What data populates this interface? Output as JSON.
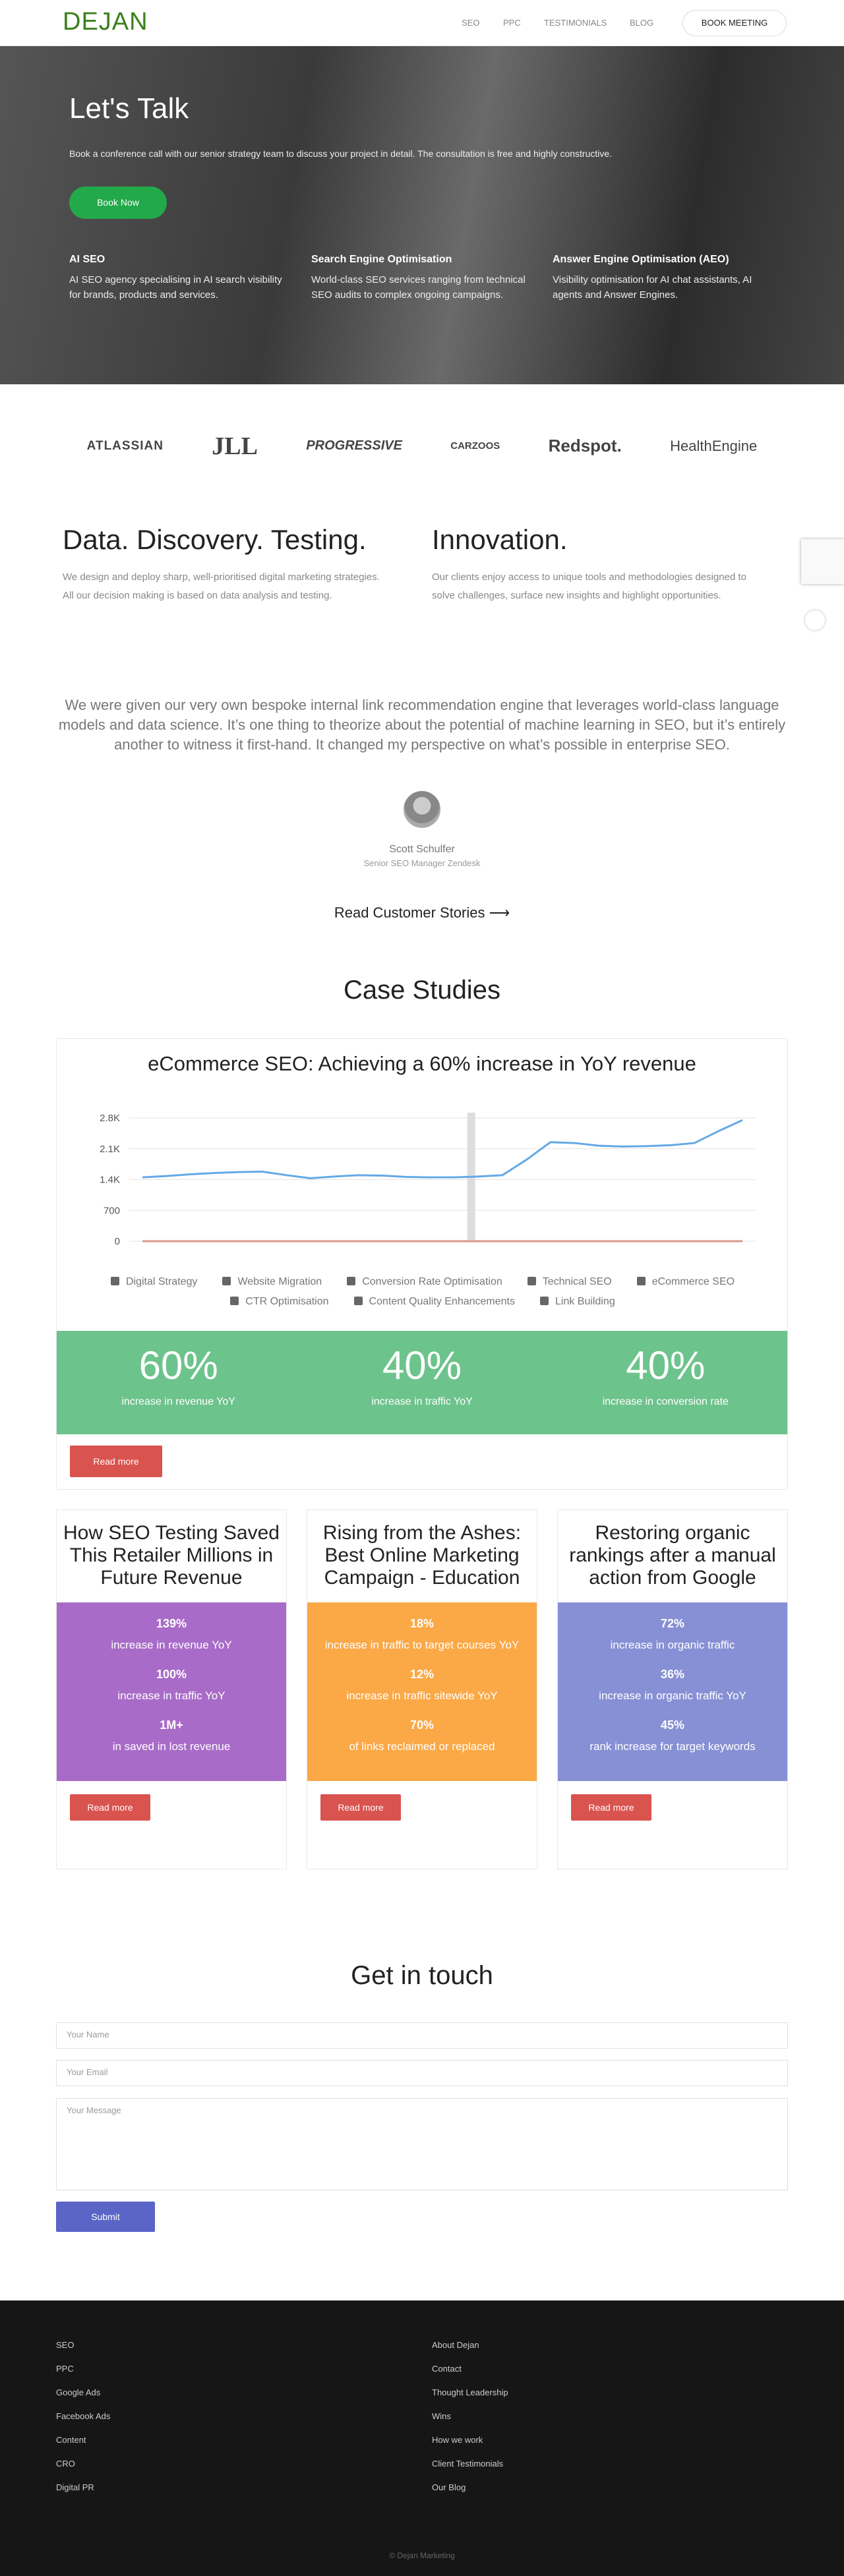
{
  "header": {
    "logo": "DEJAN",
    "nav": [
      "SEO",
      "PPC",
      "TESTIMONIALS",
      "BLOG"
    ],
    "button": "BOOK MEETING"
  },
  "hero": {
    "title": "Let's Talk",
    "subtitle": "Book a conference call with our senior strategy team to discuss your project in detail. The consultation is free and highly constructive.",
    "button": "Book Now",
    "columns": [
      {
        "title": "AI SEO",
        "text": "AI SEO agency specialising in AI search visibility for brands, products and services."
      },
      {
        "title": "Search Engine Optimisation",
        "text": "World-class SEO services ranging from technical SEO audits to complex ongoing campaigns."
      },
      {
        "title": "Answer Engine Optimisation (AEO)",
        "text": "Visibility optimisation for AI chat assistants, AI agents and Answer Engines."
      }
    ]
  },
  "logos": [
    "ATLASSIAN",
    "JLL",
    "PROGRESSIVE",
    "CARZOOS",
    "Redspot.",
    "HealthEngine"
  ],
  "features": [
    {
      "title": "Data. Discovery. Testing.",
      "text": "We design and deploy sharp, well-prioritised digital marketing strategies. All our decision making is based on data analysis and testing."
    },
    {
      "title": "Innovation.",
      "text": "Our clients enjoy access to unique tools and methodologies designed to solve challenges, surface new insights and highlight opportunities."
    }
  ],
  "testimonial": {
    "quote": "We were given our very own bespoke internal link recommendation engine that leverages world-class language models and data science. It’s one thing to theorize about the potential of machine learning in SEO, but it’s entirely another to witness it first-hand. It changed my perspective on what’s possible in enterprise SEO.",
    "name": "Scott Schulfer",
    "role": "Senior SEO Manager Zendesk",
    "link": "Read Customer Stories ⟶"
  },
  "case_studies": {
    "title": "Case Studies",
    "featured": {
      "title": "eCommerce SEO: Achieving a 60% increase in YoY revenue",
      "tags": [
        "Digital Strategy",
        "Website Migration",
        "Conversion Rate Optimisation",
        "Technical SEO",
        "eCommerce SEO",
        "CTR Optimisation",
        "Content Quality Enhancements",
        "Link Building"
      ],
      "stats": [
        {
          "value": "60%",
          "label": "increase in revenue YoY"
        },
        {
          "value": "40%",
          "label": "increase in traffic YoY"
        },
        {
          "value": "40%",
          "label": "increase in conversion rate"
        }
      ],
      "button": "Read more"
    },
    "cards": [
      {
        "title": "How SEO Testing Saved This Retailer Millions in Future Revenue",
        "color": "#a86cc8",
        "stats": [
          {
            "value": "139%",
            "label": "increase in revenue YoY"
          },
          {
            "value": "100%",
            "label": "increase in traffic YoY"
          },
          {
            "value": "1M+",
            "label": "in saved in lost revenue"
          }
        ],
        "button": "Read more"
      },
      {
        "title": "Rising from the Ashes: Best Online Marketing Campaign - Education",
        "color": "#fba846",
        "stats": [
          {
            "value": "18%",
            "label": "increase in traffic to target courses YoY"
          },
          {
            "value": "12%",
            "label": "increase in traffic sitewide YoY"
          },
          {
            "value": "70%",
            "label": "of links reclaimed or replaced"
          }
        ],
        "button": "Read more"
      },
      {
        "title": "Restoring organic rankings after a manual action from Google",
        "color": "#8790d4",
        "stats": [
          {
            "value": "72%",
            "label": "increase in organic traffic"
          },
          {
            "value": "36%",
            "label": "increase in organic traffic YoY"
          },
          {
            "value": "45%",
            "label": "rank increase for target keywords"
          }
        ],
        "button": "Read more"
      }
    ]
  },
  "chart_data": {
    "type": "line",
    "categories": [
      null,
      null,
      null,
      null,
      null,
      null,
      null,
      null,
      null,
      null,
      null,
      null,
      null,
      null,
      null,
      null,
      null,
      null,
      null,
      null,
      null,
      null,
      null,
      null,
      null,
      null
    ],
    "series": [
      {
        "color": "#64a9e6",
        "values": [
          1450,
          1480,
          1520,
          1550,
          1570,
          1580,
          1500,
          1430,
          1470,
          1500,
          1490,
          1460,
          1450,
          1450,
          1470,
          1500,
          1850,
          2250,
          2230,
          2170,
          2150,
          2160,
          2180,
          2230,
          2500,
          2750
        ]
      },
      {
        "color": "#d99a8a",
        "values": [
          0,
          0,
          0,
          0,
          0,
          0,
          0,
          0,
          0,
          0,
          0,
          0,
          0,
          0,
          0,
          0,
          0,
          0,
          0,
          0,
          0,
          0,
          0,
          0,
          0,
          0
        ]
      }
    ],
    "ylim": [
      0,
      2800
    ],
    "yticks": [
      0,
      700,
      {
        "value": 1400,
        "label": "1.4K"
      },
      {
        "value": 2100,
        "label": "2.1K"
      },
      {
        "value": 2800,
        "label": "2.8K"
      }
    ],
    "grid": true
  },
  "contact": {
    "title": "Get in touch",
    "fields": [
      "Your Name",
      "Your Email",
      "Your Message"
    ],
    "button": "Submit"
  },
  "footer": {
    "left": [
      "SEO",
      "PPC",
      "Google Ads",
      "Facebook Ads",
      "Content",
      "CRO",
      "Digital PR"
    ],
    "right": [
      "About Dejan",
      "Contact",
      "Thought Leadership",
      "Wins",
      "How we work",
      "Client Testimonials",
      "Our Blog"
    ],
    "copyright": "© Dejan Marketing"
  }
}
